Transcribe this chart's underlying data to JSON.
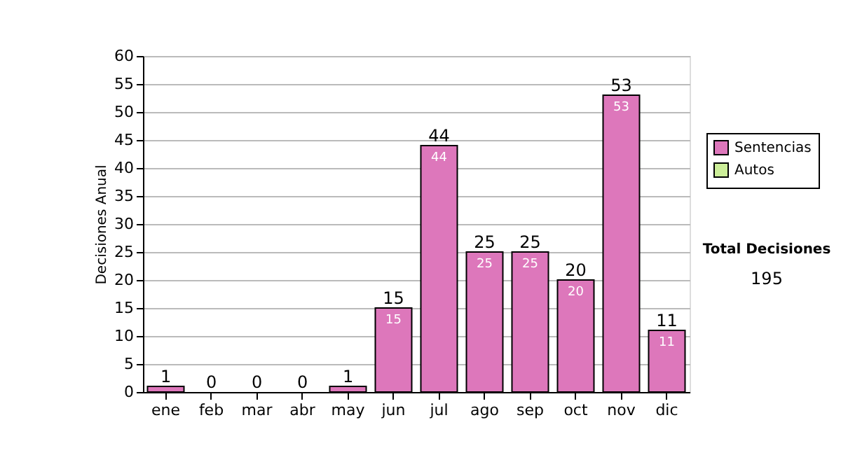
{
  "chart_data": {
    "type": "bar",
    "stacked": true,
    "ylabel": "Decisiones Anual",
    "categories": [
      "ene",
      "feb",
      "mar",
      "abr",
      "may",
      "jun",
      "jul",
      "ago",
      "sep",
      "oct",
      "nov",
      "dic"
    ],
    "series": [
      {
        "name": "Sentencias",
        "color": "#dd77bb",
        "values": [
          1,
          0,
          0,
          0,
          1,
          15,
          44,
          25,
          25,
          20,
          53,
          11
        ],
        "value_labels": [
          null,
          null,
          null,
          null,
          null,
          "15",
          "44",
          "25",
          "25",
          "20",
          "53",
          "11"
        ]
      },
      {
        "name": "Autos",
        "color": "#ccee99",
        "values": [
          0,
          0,
          0,
          0,
          0,
          0,
          0,
          0,
          0,
          0,
          0,
          0
        ]
      }
    ],
    "totals": [
      "1",
      "0",
      "0",
      "0",
      "1",
      "15",
      "44",
      "25",
      "25",
      "20",
      "53",
      "11"
    ],
    "ylim": [
      0,
      60
    ],
    "yticks": [
      0,
      5,
      10,
      15,
      20,
      25,
      30,
      35,
      40,
      45,
      50,
      55,
      60
    ],
    "grid": "y",
    "legend": "right",
    "annotations": [
      "Total Decisiones",
      "195"
    ]
  }
}
